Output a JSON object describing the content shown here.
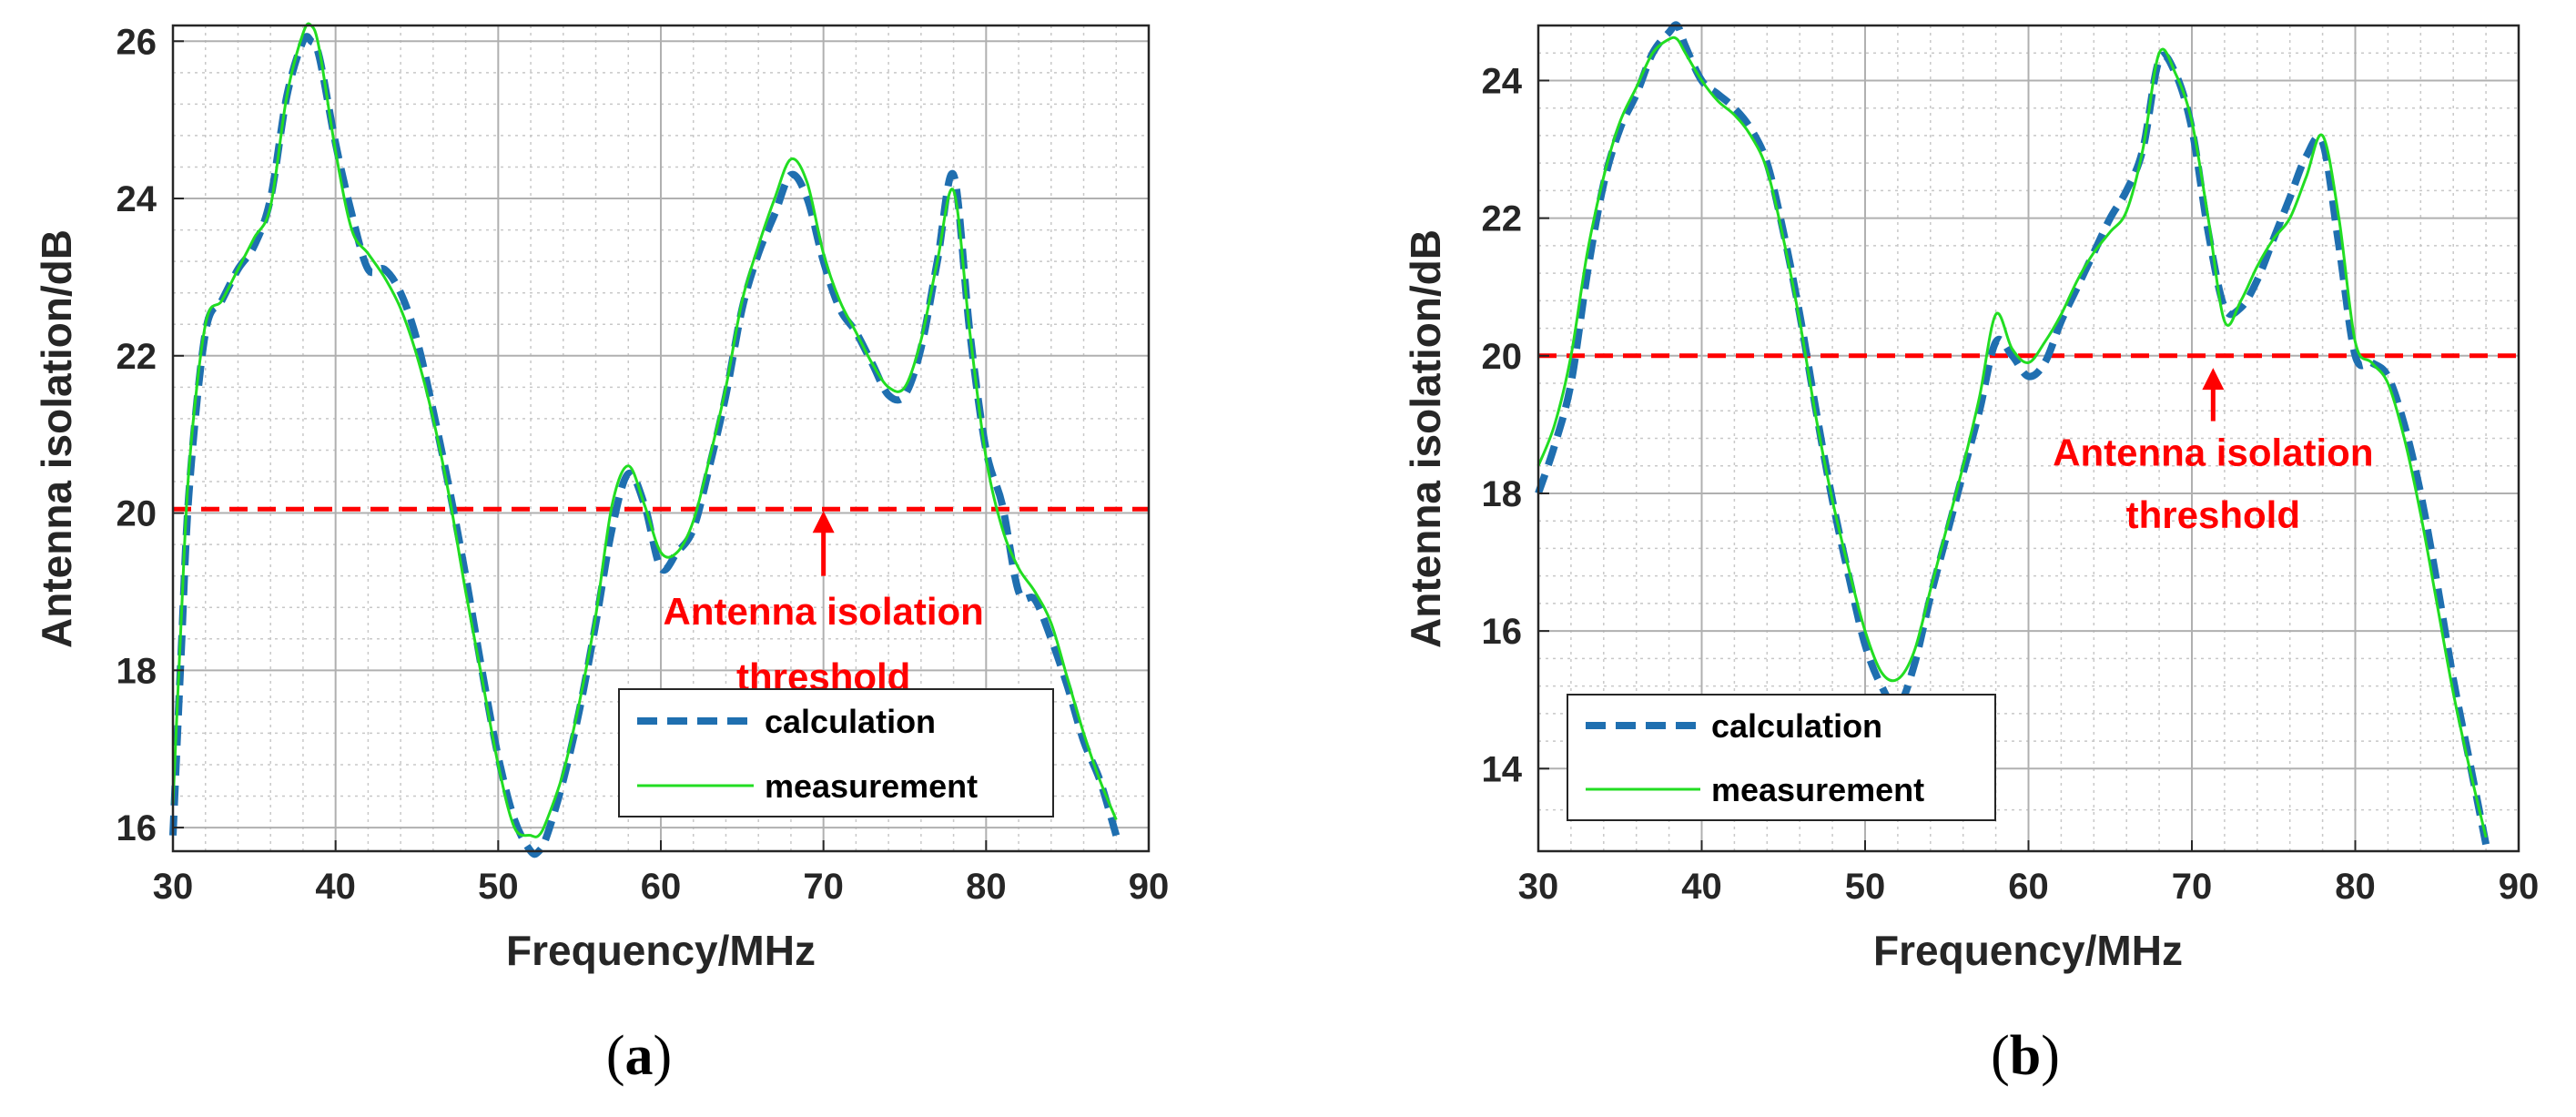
{
  "chart_data": [
    {
      "type": "line",
      "panel": "a",
      "caption_open": "(",
      "caption_letter": "a",
      "caption_close": ")",
      "xlabel": "Frequency/MHz",
      "ylabel": "Antenna isolation/dB",
      "xlim": [
        30,
        90
      ],
      "ylim": [
        15.7,
        26.2
      ],
      "xticks": [
        30,
        40,
        50,
        60,
        70,
        80,
        90
      ],
      "yticks": [
        16,
        18,
        20,
        22,
        24,
        26
      ],
      "xticks_minor": [
        32,
        34,
        36,
        38,
        42,
        44,
        46,
        48,
        52,
        54,
        56,
        58,
        62,
        64,
        66,
        68,
        72,
        74,
        76,
        78,
        82,
        84,
        86,
        88
      ],
      "yticks_minor": [
        16.4,
        16.8,
        17.2,
        17.6,
        18.4,
        18.8,
        19.2,
        19.6,
        20.4,
        20.8,
        21.2,
        21.6,
        22.4,
        22.8,
        23.2,
        23.6,
        24.4,
        24.8,
        25.2,
        25.6
      ],
      "grid": true,
      "threshold": 20.05,
      "threshold_color": "#ff0000",
      "annotation": {
        "line1": "Antenna isolation",
        "line2": "threshold",
        "arrow_x": 70,
        "arrow_tip_y": 20.05,
        "arrow_base_y": 19.2,
        "text_x": 70,
        "text_y1": 18.58,
        "text_y2": 17.75,
        "color": "#ff0000"
      },
      "legend": {
        "location": "bottom-right",
        "entries": [
          "calculation",
          "measurement"
        ]
      },
      "series": [
        {
          "name": "calculation",
          "color": "#1f6fb0",
          "style": "dashed",
          "x": [
            30,
            30.5,
            31,
            32,
            33,
            34,
            35,
            36,
            37,
            38,
            38.5,
            39,
            40,
            41,
            42,
            43,
            44,
            45,
            46,
            47,
            48,
            49,
            50,
            51,
            52,
            52.5,
            53,
            54,
            55,
            56,
            57,
            58,
            59,
            60,
            61,
            62,
            63,
            64,
            65,
            66,
            67,
            68,
            69,
            70,
            71,
            72,
            73,
            74,
            75,
            76,
            77,
            78,
            79,
            80,
            81,
            82,
            83,
            84,
            85,
            86,
            87,
            88
          ],
          "values": [
            15.9,
            18.2,
            20.3,
            22.3,
            22.7,
            23.1,
            23.4,
            24.0,
            25.3,
            26.0,
            26.0,
            25.8,
            24.7,
            23.8,
            23.1,
            23.1,
            22.8,
            22.2,
            21.3,
            20.3,
            19.2,
            18.0,
            16.9,
            16.1,
            15.7,
            15.7,
            15.9,
            16.6,
            17.5,
            18.6,
            19.8,
            20.5,
            20.1,
            19.3,
            19.5,
            19.8,
            20.6,
            21.5,
            22.6,
            23.3,
            23.8,
            24.3,
            24.0,
            23.2,
            22.6,
            22.3,
            21.9,
            21.5,
            21.5,
            22.1,
            23.2,
            24.3,
            22.3,
            20.8,
            20.1,
            19.0,
            18.9,
            18.4,
            17.8,
            17.1,
            16.6,
            15.9
          ]
        },
        {
          "name": "measurement",
          "color": "#22dd22",
          "style": "solid",
          "x": [
            30,
            30.5,
            31,
            32,
            33,
            34,
            35,
            36,
            37,
            38,
            38.5,
            39,
            40,
            41,
            42,
            43,
            44,
            45,
            46,
            47,
            48,
            49,
            50,
            51,
            52,
            52.5,
            53,
            54,
            55,
            56,
            57,
            58,
            59,
            60,
            61,
            62,
            63,
            64,
            65,
            66,
            67,
            68,
            69,
            70,
            71,
            72,
            73,
            74,
            75,
            76,
            77,
            78,
            79,
            80,
            81,
            82,
            83,
            84,
            85,
            86,
            87,
            88
          ],
          "values": [
            16.3,
            18.6,
            20.6,
            22.4,
            22.7,
            23.1,
            23.5,
            23.9,
            25.3,
            26.1,
            26.2,
            25.9,
            24.6,
            23.6,
            23.3,
            23.0,
            22.6,
            22.0,
            21.2,
            20.2,
            19.0,
            17.9,
            16.8,
            16.0,
            15.9,
            15.9,
            16.1,
            16.7,
            17.6,
            18.7,
            20.1,
            20.6,
            20.1,
            19.5,
            19.5,
            19.9,
            20.7,
            21.6,
            22.7,
            23.4,
            24.0,
            24.5,
            24.2,
            23.3,
            22.7,
            22.3,
            21.9,
            21.6,
            21.6,
            22.2,
            23.2,
            24.1,
            22.3,
            20.7,
            19.8,
            19.3,
            19.0,
            18.6,
            17.9,
            17.2,
            16.6,
            16.1
          ]
        }
      ]
    },
    {
      "type": "line",
      "panel": "b",
      "caption_open": "(",
      "caption_letter": "b",
      "caption_close": ")",
      "xlabel": "Frequency/MHz",
      "ylabel": "Antenna isolation/dB",
      "xlim": [
        30,
        90
      ],
      "ylim": [
        12.8,
        24.8
      ],
      "xticks": [
        30,
        40,
        50,
        60,
        70,
        80,
        90
      ],
      "yticks": [
        14,
        16,
        18,
        20,
        22,
        24
      ],
      "xticks_minor": [
        32,
        34,
        36,
        38,
        42,
        44,
        46,
        48,
        52,
        54,
        56,
        58,
        62,
        64,
        66,
        68,
        72,
        74,
        76,
        78,
        82,
        84,
        86,
        88
      ],
      "yticks_minor": [
        13.4,
        14.4,
        14.8,
        15.2,
        15.6,
        16.4,
        16.8,
        17.2,
        17.6,
        18.4,
        18.8,
        19.2,
        19.6,
        20.4,
        20.8,
        21.2,
        21.6,
        22.4,
        22.8,
        23.2,
        23.6,
        24.4
      ],
      "grid": true,
      "threshold": 20.0,
      "threshold_color": "#ff0000",
      "annotation": {
        "line1": "Antenna isolation",
        "line2": "threshold",
        "arrow_x": 71.3,
        "arrow_tip_y": 19.85,
        "arrow_base_y": 19.05,
        "text_x": 71.3,
        "text_y1": 18.4,
        "text_y2": 17.5,
        "color": "#ff0000"
      },
      "legend": {
        "location": "bottom-left",
        "entries": [
          "calculation",
          "measurement"
        ]
      },
      "series": [
        {
          "name": "calculation",
          "color": "#1f6fb0",
          "style": "dashed",
          "x": [
            30,
            31,
            32,
            33,
            34,
            35,
            36,
            37,
            38,
            38.5,
            39,
            40,
            41,
            42,
            43,
            44,
            45,
            46,
            47,
            48,
            49,
            50,
            51,
            52,
            53,
            54,
            55,
            56,
            57,
            58,
            59,
            60,
            61,
            62,
            63,
            64,
            65,
            66,
            67,
            68,
            69,
            70,
            71,
            72,
            73,
            74,
            75,
            76,
            77,
            78,
            79,
            80,
            81,
            82,
            83,
            84,
            85,
            86,
            87,
            88
          ],
          "values": [
            18.0,
            18.7,
            19.6,
            21.2,
            22.5,
            23.3,
            23.8,
            24.4,
            24.7,
            24.8,
            24.5,
            24.0,
            23.8,
            23.6,
            23.3,
            22.8,
            21.8,
            20.6,
            19.2,
            17.9,
            16.8,
            15.8,
            15.2,
            14.9,
            15.5,
            16.5,
            17.4,
            18.3,
            19.2,
            20.2,
            20.0,
            19.7,
            19.9,
            20.5,
            21.0,
            21.5,
            22.0,
            22.4,
            23.0,
            24.3,
            24.1,
            23.3,
            21.8,
            20.7,
            20.7,
            21.1,
            21.7,
            22.3,
            22.9,
            23.1,
            21.6,
            20.0,
            19.9,
            19.7,
            19.0,
            18.0,
            16.7,
            15.3,
            14.1,
            12.9
          ]
        },
        {
          "name": "measurement",
          "color": "#22dd22",
          "style": "solid",
          "x": [
            30,
            31,
            32,
            33,
            34,
            35,
            36,
            37,
            38,
            38.5,
            39,
            40,
            41,
            42,
            43,
            44,
            45,
            46,
            47,
            48,
            49,
            50,
            51,
            52,
            53,
            54,
            55,
            56,
            57,
            58,
            59,
            60,
            61,
            62,
            63,
            64,
            65,
            66,
            67,
            68,
            69,
            70,
            71,
            72,
            73,
            74,
            75,
            76,
            77,
            78,
            79,
            80,
            81,
            82,
            83,
            84,
            85,
            86,
            87,
            88
          ],
          "values": [
            18.4,
            19.0,
            20.0,
            21.5,
            22.6,
            23.4,
            23.9,
            24.4,
            24.6,
            24.6,
            24.4,
            24.0,
            23.7,
            23.5,
            23.2,
            22.7,
            21.7,
            20.5,
            19.1,
            17.9,
            16.9,
            16.0,
            15.4,
            15.3,
            15.7,
            16.6,
            17.5,
            18.4,
            19.4,
            20.6,
            20.1,
            19.9,
            20.2,
            20.6,
            21.1,
            21.5,
            21.8,
            22.1,
            23.0,
            24.4,
            24.1,
            23.4,
            22.0,
            20.5,
            20.8,
            21.3,
            21.7,
            22.0,
            22.6,
            23.2,
            22.0,
            20.2,
            19.9,
            19.6,
            18.8,
            17.7,
            16.4,
            15.1,
            14.0,
            13.0
          ]
        }
      ]
    }
  ]
}
